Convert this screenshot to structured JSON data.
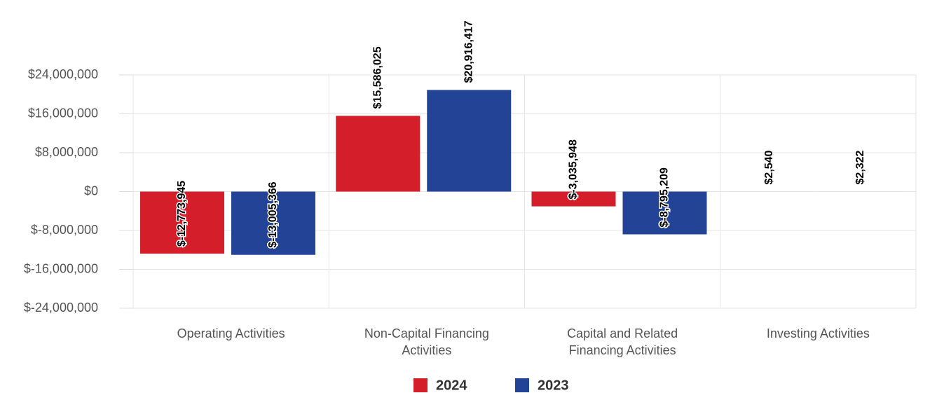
{
  "chart_data": {
    "type": "bar",
    "categories": [
      "Operating Activities",
      "Non-Capital Financing Activities",
      "Capital and Related Financing Activities",
      "Investing Activities"
    ],
    "series": [
      {
        "name": "2024",
        "color": "#d41f2a",
        "values": [
          -12773945,
          15586025,
          -3035948,
          2540
        ],
        "value_labels": [
          "$-12,773,945",
          "$15,586,025",
          "$-3,035,948",
          "$2,540"
        ]
      },
      {
        "name": "2023",
        "color": "#234397",
        "values": [
          -13005366,
          20916417,
          -8795209,
          2322
        ],
        "value_labels": [
          "$-13,005,366",
          "$20,916,417",
          "$-8,795,209",
          "$2,322"
        ]
      }
    ],
    "ylim": [
      -24000000,
      24000000
    ],
    "yticks": [
      {
        "value": -24000000,
        "label": "$-24,000,000"
      },
      {
        "value": -16000000,
        "label": "$-16,000,000"
      },
      {
        "value": -8000000,
        "label": "$-8,000,000"
      },
      {
        "value": 0,
        "label": "$0"
      },
      {
        "value": 8000000,
        "label": "$8,000,000"
      },
      {
        "value": 16000000,
        "label": "$16,000,000"
      },
      {
        "value": 24000000,
        "label": "$24,000,000"
      }
    ],
    "grid": true,
    "legend": "bottom"
  }
}
